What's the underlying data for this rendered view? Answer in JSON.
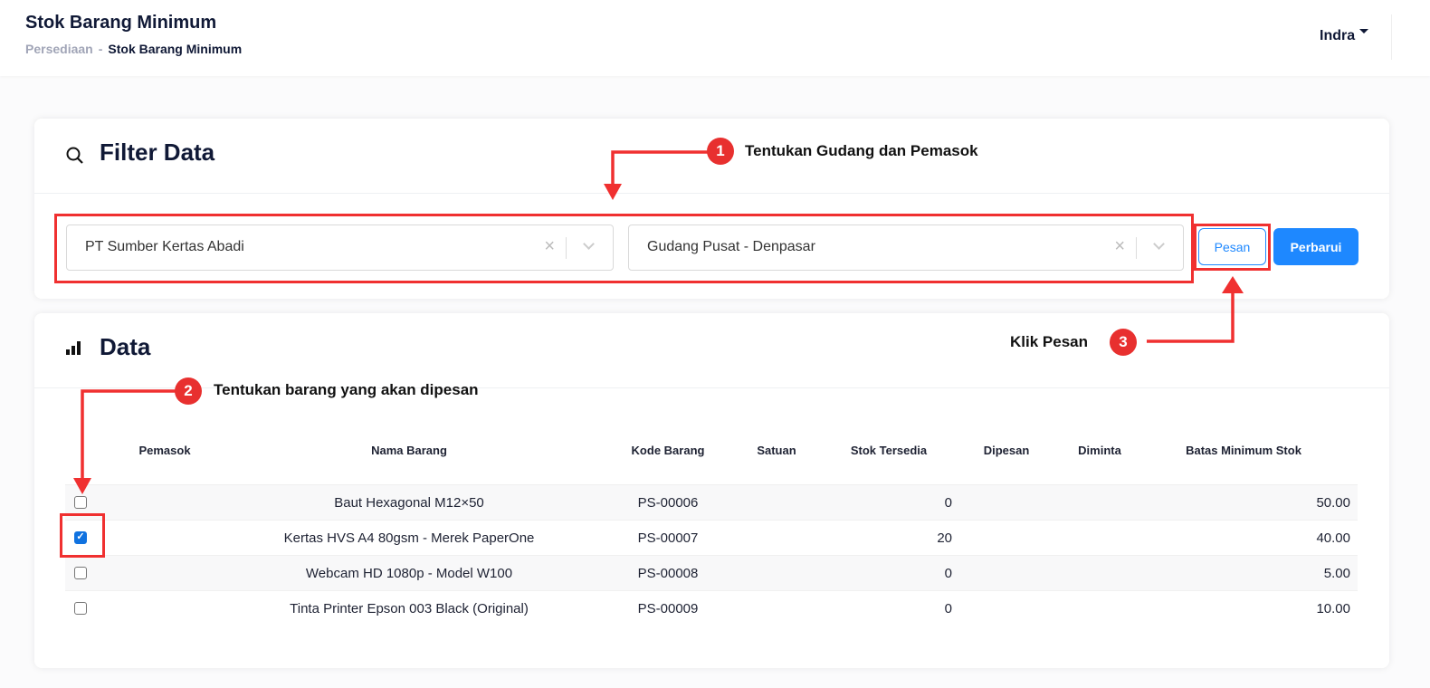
{
  "header": {
    "title": "Stok Barang Minimum",
    "breadcrumb": [
      "Persediaan",
      "Stok Barang Minimum"
    ],
    "breadcrumb_sep": "-",
    "user": "Indra"
  },
  "filter": {
    "title": "Filter Data",
    "pemasok": "PT Sumber Kertas Abadi",
    "gudang": "Gudang Pusat - Denpasar",
    "clear": "×",
    "pesan": "Pesan",
    "perbarui": "Perbarui"
  },
  "data": {
    "title": "Data",
    "columns": [
      "Pemasok",
      "Nama Barang",
      "Kode Barang",
      "Satuan",
      "Stok Tersedia",
      "Dipesan",
      "Diminta",
      "Batas Minimum Stok"
    ],
    "rows": [
      {
        "pemasok": "",
        "nama": "Baut Hexagonal M12×50",
        "kode": "PS-00006",
        "satuan": "",
        "stok": "0",
        "dipesan": "",
        "diminta": "",
        "batas": "50.00",
        "checked": false
      },
      {
        "pemasok": "",
        "nama": "Kertas HVS A4 80gsm - Merek PaperOne",
        "kode": "PS-00007",
        "satuan": "",
        "stok": "20",
        "dipesan": "",
        "diminta": "",
        "batas": "40.00",
        "checked": true
      },
      {
        "pemasok": "",
        "nama": "Webcam HD 1080p - Model W100",
        "kode": "PS-00008",
        "satuan": "",
        "stok": "0",
        "dipesan": "",
        "diminta": "",
        "batas": "5.00",
        "checked": false
      },
      {
        "pemasok": "",
        "nama": "Tinta Printer Epson 003 Black (Original)",
        "kode": "PS-00009",
        "satuan": "",
        "stok": "0",
        "dipesan": "",
        "diminta": "",
        "batas": "10.00",
        "checked": false
      }
    ]
  },
  "annotations": [
    {
      "n": "1",
      "text": "Tentukan Gudang dan Pemasok"
    },
    {
      "n": "2",
      "text": "Tentukan barang yang akan dipesan"
    },
    {
      "n": "3",
      "text": "Klik Pesan"
    }
  ],
  "colors": {
    "accent": "#1e88ff",
    "annotation": "#f03030",
    "title": "#101936"
  }
}
